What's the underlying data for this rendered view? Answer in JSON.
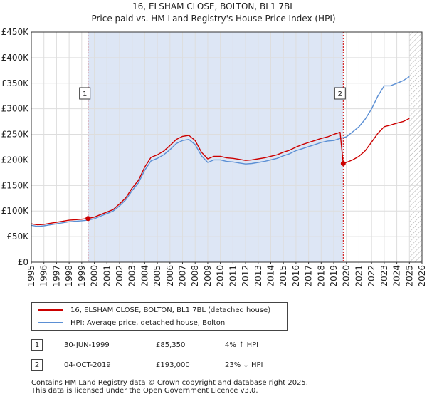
{
  "title": "16, ELSHAM CLOSE, BOLTON, BL1 7BL",
  "subtitle": "Price paid vs. HM Land Registry's House Price Index (HPI)",
  "colors": {
    "property": "#cc0000",
    "hpi": "#5b8fd4",
    "shade": "#dde6f5",
    "grid": "#dddddd",
    "hatch": "#aaaaaa"
  },
  "chart_data": {
    "type": "line",
    "xlim": [
      1995,
      2026
    ],
    "ylim": [
      0,
      450000
    ],
    "y_ticks": [
      0,
      50000,
      100000,
      150000,
      200000,
      250000,
      300000,
      350000,
      400000,
      450000
    ],
    "y_tick_labels": [
      "£0",
      "£50K",
      "£100K",
      "£150K",
      "£200K",
      "£250K",
      "£300K",
      "£350K",
      "£400K",
      "£450K"
    ],
    "x_ticks": [
      1995,
      1996,
      1997,
      1998,
      1999,
      2000,
      2001,
      2002,
      2003,
      2004,
      2005,
      2006,
      2007,
      2008,
      2009,
      2010,
      2011,
      2012,
      2013,
      2014,
      2015,
      2016,
      2017,
      2018,
      2019,
      2020,
      2021,
      2022,
      2023,
      2024,
      2025,
      2026
    ],
    "x_tick_labels": [
      "1995",
      "1996",
      "1997",
      "1998",
      "1999",
      "2000",
      "2001",
      "2002",
      "2003",
      "2004",
      "2005",
      "2006",
      "2007",
      "2008",
      "2009",
      "2010",
      "2011",
      "2012",
      "2013",
      "2014",
      "2015",
      "2016",
      "2017",
      "2018",
      "2019",
      "2020",
      "2021",
      "2022",
      "2023",
      "2024",
      "2025",
      "2026"
    ],
    "shaded_period": [
      1999.5,
      2019.75
    ],
    "forecast_start": 2025.0,
    "series": [
      {
        "name": "HPI: Average price, detached house, Bolton",
        "x": [
          1995,
          1995.5,
          1996,
          1996.5,
          1997,
          1997.5,
          1998,
          1998.5,
          1999,
          1999.5,
          2000,
          2000.5,
          2001,
          2001.5,
          2002,
          2002.5,
          2003,
          2003.5,
          2004,
          2004.5,
          2005,
          2005.5,
          2006,
          2006.5,
          2007,
          2007.5,
          2008,
          2008.5,
          2009,
          2009.5,
          2010,
          2010.5,
          2011,
          2011.5,
          2012,
          2012.5,
          2013,
          2013.5,
          2014,
          2014.5,
          2015,
          2015.5,
          2016,
          2016.5,
          2017,
          2017.5,
          2018,
          2018.5,
          2019,
          2019.5,
          2020,
          2020.5,
          2021,
          2021.5,
          2022,
          2022.5,
          2023,
          2023.5,
          2024,
          2024.5,
          2025
        ],
        "values": [
          72000,
          70000,
          71000,
          73000,
          75000,
          77000,
          79000,
          80000,
          81000,
          82000,
          85000,
          90000,
          95000,
          100000,
          110000,
          122000,
          140000,
          155000,
          180000,
          198000,
          203000,
          210000,
          220000,
          232000,
          238000,
          240000,
          230000,
          208000,
          195000,
          200000,
          200000,
          197000,
          196000,
          194000,
          192000,
          193000,
          195000,
          197000,
          200000,
          203000,
          208000,
          212000,
          218000,
          222000,
          226000,
          230000,
          234000,
          237000,
          238000,
          242000,
          245000,
          255000,
          265000,
          280000,
          300000,
          325000,
          345000,
          345000,
          350000,
          355000,
          363000
        ]
      },
      {
        "name": "16, ELSHAM CLOSE, BOLTON, BL1 7BL (detached house)",
        "x": [
          1995,
          1995.5,
          1996,
          1996.5,
          1997,
          1997.5,
          1998,
          1998.5,
          1999,
          1999.5,
          2000,
          2000.5,
          2001,
          2001.5,
          2002,
          2002.5,
          2003,
          2003.5,
          2004,
          2004.5,
          2005,
          2005.5,
          2006,
          2006.5,
          2007,
          2007.5,
          2008,
          2008.5,
          2009,
          2009.5,
          2010,
          2010.5,
          2011,
          2011.5,
          2012,
          2012.5,
          2013,
          2013.5,
          2014,
          2014.5,
          2015,
          2015.5,
          2016,
          2016.5,
          2017,
          2017.5,
          2018,
          2018.5,
          2019,
          2019.5,
          2019.75,
          2020,
          2020.5,
          2021,
          2021.5,
          2022,
          2022.5,
          2023,
          2023.5,
          2024,
          2024.5,
          2025
        ],
        "values": [
          75000,
          73000,
          74000,
          76000,
          78000,
          80000,
          82000,
          83000,
          84000,
          85350,
          88000,
          93000,
          98000,
          103000,
          114000,
          126000,
          145000,
          160000,
          186000,
          205000,
          210000,
          217000,
          228000,
          240000,
          246000,
          248000,
          238000,
          215000,
          202000,
          207000,
          207000,
          204000,
          203000,
          201000,
          199000,
          200000,
          202000,
          204000,
          207000,
          210000,
          215000,
          219000,
          225000,
          230000,
          234000,
          238000,
          242000,
          245000,
          250000,
          254000,
          193000,
          195000,
          200000,
          207000,
          218000,
          235000,
          252000,
          265000,
          268000,
          272000,
          275000,
          281000
        ]
      }
    ],
    "annotations": [
      {
        "label": "1",
        "x": 1999.5,
        "y": 85350
      },
      {
        "label": "2",
        "x": 2019.75,
        "y": 193000
      }
    ]
  },
  "legend": {
    "property_label": "16, ELSHAM CLOSE, BOLTON, BL1 7BL (detached house)",
    "hpi_label": "HPI: Average price, detached house, Bolton"
  },
  "transactions": [
    {
      "num": "1",
      "date": "30-JUN-1999",
      "price": "£85,350",
      "delta": "4% ↑ HPI"
    },
    {
      "num": "2",
      "date": "04-OCT-2019",
      "price": "£193,000",
      "delta": "23% ↓ HPI"
    }
  ],
  "footer": {
    "line1": "Contains HM Land Registry data © Crown copyright and database right 2025.",
    "line2": "This data is licensed under the Open Government Licence v3.0."
  }
}
